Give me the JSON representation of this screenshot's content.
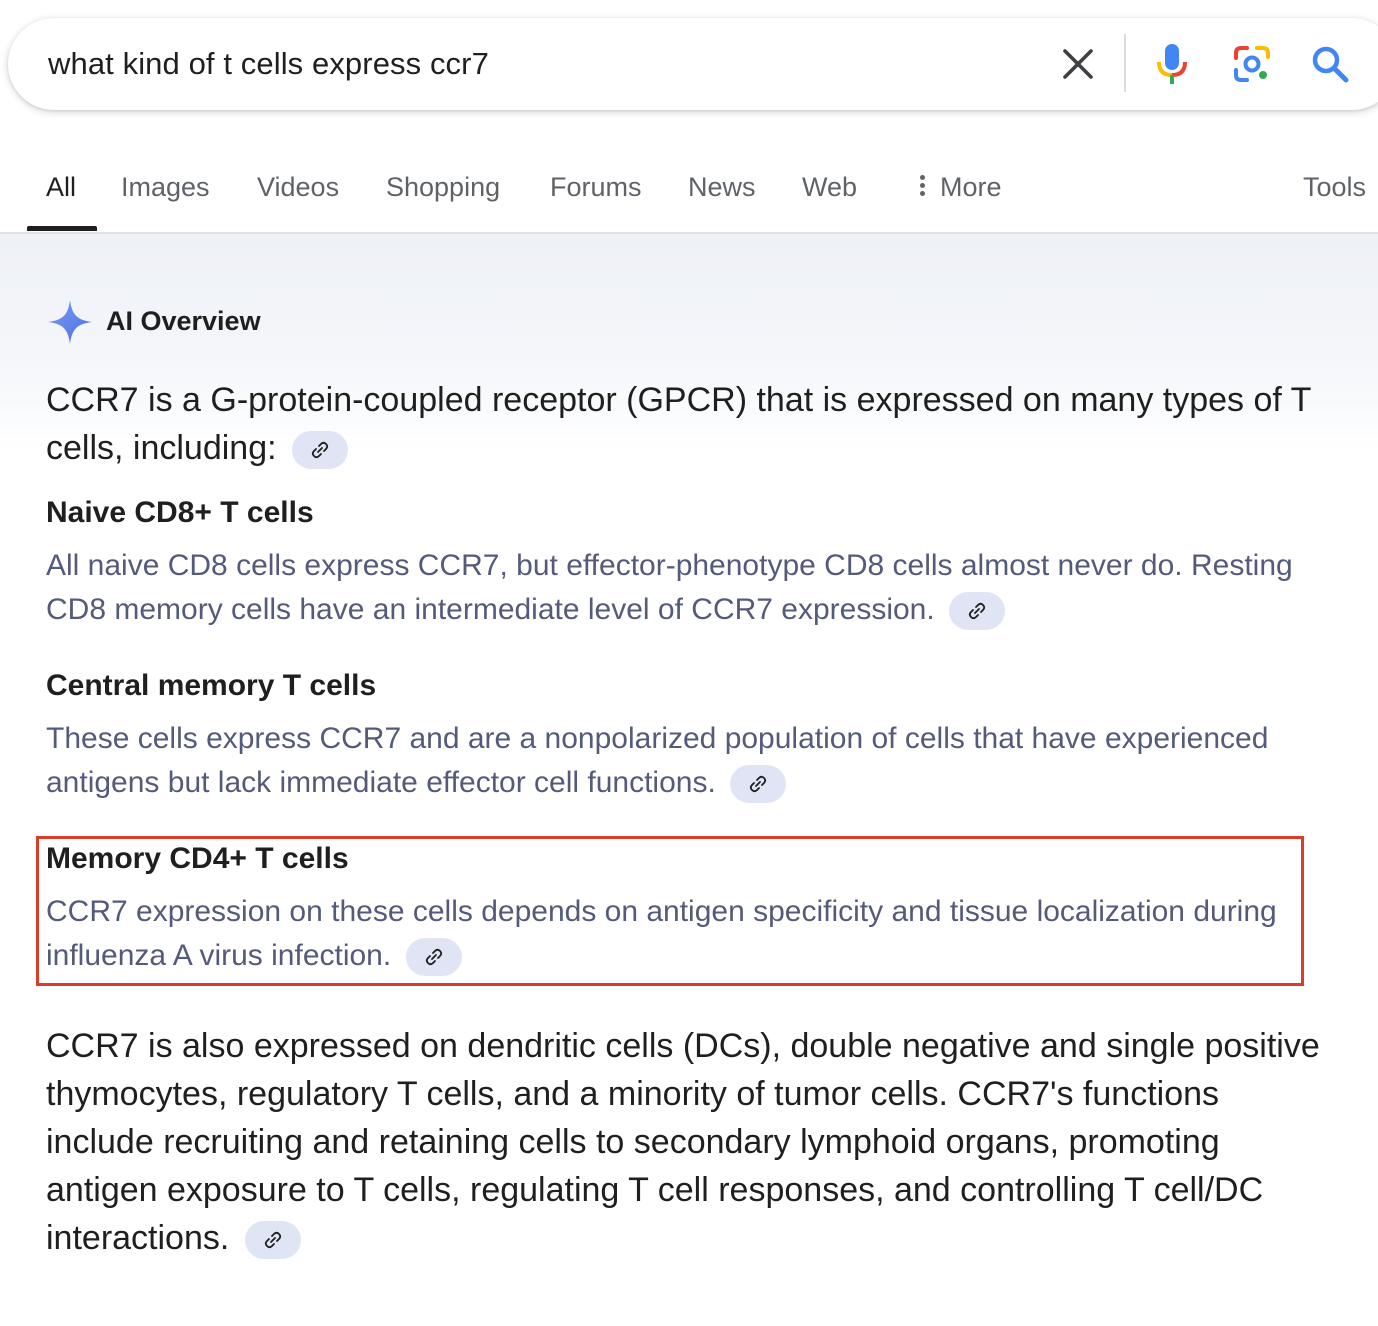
{
  "search": {
    "query": "what kind of t cells express ccr7"
  },
  "tabs": [
    {
      "label": "All"
    },
    {
      "label": "Images"
    },
    {
      "label": "Videos"
    },
    {
      "label": "Shopping"
    },
    {
      "label": "Forums"
    },
    {
      "label": "News"
    },
    {
      "label": "Web"
    },
    {
      "label": "More"
    },
    {
      "label": "Tools"
    }
  ],
  "ai_overview": {
    "header": "AI Overview",
    "intro": "CCR7 is a G-protein-coupled receptor (GPCR) that is expressed on many types of T cells, including:",
    "items": [
      {
        "title": "Naive CD8+ T cells",
        "body": "All naive CD8 cells express CCR7, but effector-phenotype CD8 cells almost never do. Resting CD8 memory cells have an intermediate level of CCR7 expression."
      },
      {
        "title": "Central memory T cells",
        "body": "These cells express CCR7 and are a nonpolarized population of cells that have experienced antigens but lack immediate effector cell functions."
      },
      {
        "title": "Memory CD4+ T cells",
        "body": "CCR7 expression on these cells depends on antigen specificity and tissue localization during influenza A virus infection."
      }
    ],
    "outro": "CCR7 is also expressed on dendritic cells (DCs), double negative and single positive thymocytes, regulatory T cells, and a minority of tumor cells. CCR7's functions include recruiting and retaining cells to secondary lymphoid organs, promoting antigen exposure to T cells, regulating T cell responses, and controlling T cell/DC interactions."
  },
  "colors": {
    "highlight_border": "#dc3d2b",
    "body_text": "#545b7a",
    "chip_bg": "#dfe5f4"
  }
}
